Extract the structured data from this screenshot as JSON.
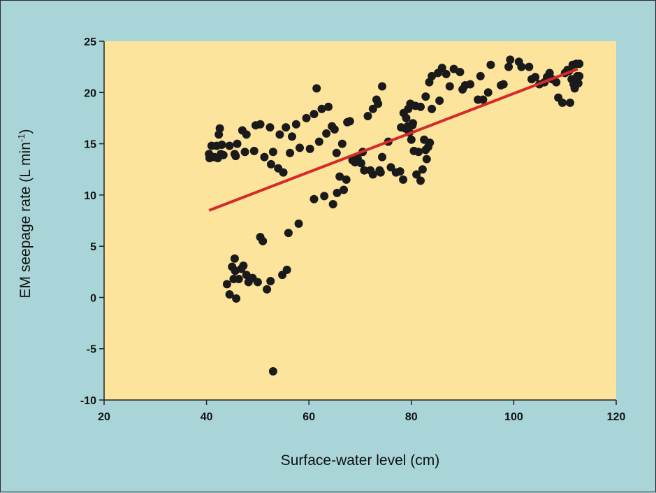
{
  "chart_data": {
    "type": "scatter",
    "xlabel": "Surface-water level (cm)",
    "ylabel_main": "EM seepage rate (L min",
    "ylabel_sup": "-1",
    "ylabel_end": ")",
    "xlim": [
      20,
      120
    ],
    "ylim": [
      -10,
      25
    ],
    "x_ticks": [
      "20",
      "40",
      "60",
      "80",
      "100",
      "120"
    ],
    "y_ticks": [
      "25",
      "20",
      "15",
      "10",
      "5",
      "0",
      "-5",
      "-10"
    ],
    "grid": false,
    "plot_bg": "#fde49c",
    "point_color": "#1a1a1a",
    "trendline": {
      "color": "#d42a2a",
      "x": [
        40.5,
        112.5
      ],
      "y": [
        8.5,
        22.3
      ]
    },
    "series": [
      {
        "points": [
          [
            40.5,
            14.0
          ],
          [
            40.6,
            13.6
          ],
          [
            41.0,
            14.8
          ],
          [
            41.5,
            13.7
          ],
          [
            42.0,
            14.8
          ],
          [
            42.2,
            13.6
          ],
          [
            42.4,
            15.9
          ],
          [
            42.6,
            16.5
          ],
          [
            42.8,
            14.0
          ],
          [
            43.0,
            14.9
          ],
          [
            43.3,
            13.9
          ],
          [
            44.5,
            14.8
          ],
          [
            45.5,
            14.0
          ],
          [
            45.7,
            13.8
          ],
          [
            46.0,
            15.0
          ],
          [
            47.0,
            16.3
          ],
          [
            47.5,
            14.2
          ],
          [
            47.8,
            15.9
          ],
          [
            49.3,
            14.3
          ],
          [
            49.6,
            16.8
          ],
          [
            50.5,
            16.9
          ],
          [
            51.3,
            13.7
          ],
          [
            52.4,
            16.6
          ],
          [
            52.6,
            13.0
          ],
          [
            53.0,
            14.2
          ],
          [
            54.0,
            12.6
          ],
          [
            54.3,
            15.9
          ],
          [
            55.0,
            12.2
          ],
          [
            55.5,
            16.6
          ],
          [
            56.3,
            14.1
          ],
          [
            56.7,
            15.7
          ],
          [
            57.5,
            16.9
          ],
          [
            58.2,
            14.6
          ],
          [
            59.5,
            17.5
          ],
          [
            60.2,
            14.5
          ],
          [
            61.0,
            17.9
          ],
          [
            61.5,
            20.4
          ],
          [
            62.0,
            15.2
          ],
          [
            62.5,
            18.4
          ],
          [
            63.4,
            16.0
          ],
          [
            63.8,
            18.6
          ],
          [
            64.5,
            16.7
          ],
          [
            65.0,
            16.4
          ],
          [
            65.4,
            14.1
          ],
          [
            68.0,
            17.2
          ],
          [
            69.0,
            13.2
          ],
          [
            70.5,
            14.2
          ],
          [
            71.5,
            17.7
          ],
          [
            72.5,
            18.4
          ],
          [
            73.2,
            19.3
          ],
          [
            73.5,
            18.9
          ],
          [
            74.0,
            12.2
          ],
          [
            74.3,
            20.6
          ],
          [
            66.5,
            15.0
          ],
          [
            67.5,
            17.1
          ],
          [
            44.0,
            1.3
          ],
          [
            44.5,
            0.3
          ],
          [
            45.0,
            3.0
          ],
          [
            45.5,
            3.8
          ],
          [
            45.6,
            2.6
          ],
          [
            45.3,
            1.8
          ],
          [
            45.8,
            -0.1
          ],
          [
            46.3,
            1.8
          ],
          [
            46.8,
            2.8
          ],
          [
            47.2,
            3.1
          ],
          [
            47.8,
            2.2
          ],
          [
            48.2,
            1.5
          ],
          [
            49.0,
            1.9
          ],
          [
            50.0,
            1.5
          ],
          [
            50.5,
            5.9
          ],
          [
            51.0,
            5.5
          ],
          [
            51.8,
            0.8
          ],
          [
            52.5,
            1.6
          ],
          [
            53.0,
            -7.2
          ],
          [
            54.8,
            2.2
          ],
          [
            55.7,
            2.7
          ],
          [
            56.0,
            6.3
          ],
          [
            58.0,
            7.2
          ],
          [
            61.0,
            9.6
          ],
          [
            63.0,
            9.9
          ],
          [
            64.7,
            9.1
          ],
          [
            65.5,
            10.2
          ],
          [
            66.0,
            11.8
          ],
          [
            66.8,
            10.5
          ],
          [
            67.3,
            11.5
          ],
          [
            68.5,
            13.4
          ],
          [
            69.5,
            13.6
          ],
          [
            70.2,
            13.1
          ],
          [
            70.8,
            12.4
          ],
          [
            72.0,
            12.4
          ],
          [
            72.5,
            12.0
          ],
          [
            73.8,
            12.4
          ],
          [
            74.3,
            13.7
          ],
          [
            75.5,
            15.2
          ],
          [
            76.0,
            12.7
          ],
          [
            77.0,
            12.2
          ],
          [
            77.8,
            12.3
          ],
          [
            78.4,
            11.5
          ],
          [
            78.8,
            16.5
          ],
          [
            79.3,
            16.7
          ],
          [
            79.6,
            16.1
          ],
          [
            80.0,
            15.4
          ],
          [
            80.2,
            16.8
          ],
          [
            80.5,
            14.3
          ],
          [
            81.0,
            12.0
          ],
          [
            81.4,
            14.2
          ],
          [
            81.8,
            11.4
          ],
          [
            82.2,
            12.5
          ],
          [
            82.5,
            15.4
          ],
          [
            82.8,
            14.4
          ],
          [
            83.0,
            13.5
          ],
          [
            83.3,
            14.7
          ],
          [
            83.6,
            15.1
          ],
          [
            78.0,
            16.6
          ],
          [
            78.5,
            18.0
          ],
          [
            79.0,
            17.5
          ],
          [
            79.4,
            18.4
          ],
          [
            79.8,
            18.9
          ],
          [
            80.3,
            17.0
          ],
          [
            80.8,
            18.7
          ],
          [
            81.8,
            18.6
          ],
          [
            82.8,
            19.6
          ],
          [
            83.5,
            21.0
          ],
          [
            84.0,
            21.6
          ],
          [
            85.2,
            21.9
          ],
          [
            86.0,
            22.4
          ],
          [
            86.8,
            21.8
          ],
          [
            87.5,
            20.6
          ],
          [
            88.3,
            22.3
          ],
          [
            89.5,
            22.0
          ],
          [
            90.0,
            20.3
          ],
          [
            90.5,
            20.7
          ],
          [
            91.5,
            20.8
          ],
          [
            93.0,
            19.3
          ],
          [
            93.5,
            21.6
          ],
          [
            94.0,
            19.3
          ],
          [
            95.0,
            20.0
          ],
          [
            95.5,
            22.7
          ],
          [
            97.5,
            20.7
          ],
          [
            98.0,
            20.8
          ],
          [
            99.0,
            22.5
          ],
          [
            99.3,
            23.2
          ],
          [
            101.0,
            23.0
          ],
          [
            101.5,
            22.5
          ],
          [
            103.0,
            22.5
          ],
          [
            103.5,
            21.3
          ],
          [
            104.2,
            21.5
          ],
          [
            105.0,
            20.8
          ],
          [
            106.0,
            21.0
          ],
          [
            106.5,
            21.5
          ],
          [
            107.0,
            21.9
          ],
          [
            107.5,
            21.3
          ],
          [
            108.3,
            21.0
          ],
          [
            108.7,
            19.5
          ],
          [
            109.5,
            19.0
          ],
          [
            110.0,
            21.9
          ],
          [
            110.5,
            22.2
          ],
          [
            111.0,
            19.0
          ],
          [
            111.5,
            22.7
          ],
          [
            111.7,
            20.8
          ],
          [
            111.9,
            20.4
          ],
          [
            112.0,
            21.1
          ],
          [
            112.2,
            22.8
          ],
          [
            112.4,
            21.6
          ],
          [
            112.6,
            20.9
          ],
          [
            112.8,
            21.6
          ],
          [
            112.8,
            22.8
          ],
          [
            111.3,
            21.3
          ],
          [
            110.8,
            22.1
          ],
          [
            84.0,
            18.4
          ],
          [
            85.5,
            19.2
          ]
        ]
      }
    ]
  }
}
